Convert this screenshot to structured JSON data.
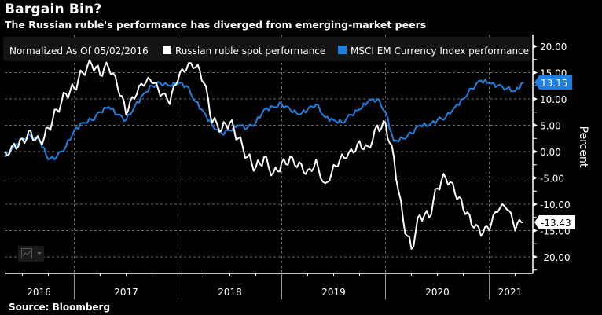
{
  "header": {
    "title": "Bargain Bin?",
    "subtitle": "The Russian ruble's performance has diverged from emerging-market peers"
  },
  "footer": {
    "source": "Source:  Bloomberg"
  },
  "widget": {
    "icon": "line-chart-icon",
    "dropdown_icon": "caret-down-icon"
  },
  "chart_data": {
    "type": "line",
    "title": "Bargain Bin?",
    "subtitle": "The Russian ruble's performance has diverged from emerging-market peers",
    "legend_note": "Normalized As Of 05/02/2016",
    "legend_position": "top",
    "xlabel": "",
    "ylabel": "Percent",
    "ylim": [
      -21.5,
      21.5
    ],
    "y_ticks": [
      20,
      15,
      10,
      5,
      0,
      -5,
      -10,
      -15,
      -20
    ],
    "y_tick_labels": [
      "20.00",
      "15.00",
      "10.00",
      "5.00",
      "0.00",
      "-5.00",
      "-10.00",
      "-15.00",
      "-20.00"
    ],
    "x_range": [
      2016.33,
      2021.42
    ],
    "x_ticks": [
      2017,
      2018,
      2019,
      2020,
      2021
    ],
    "x_labels": [
      {
        "label": "2016",
        "center": 2016.66
      },
      {
        "label": "2017",
        "center": 2017.5
      },
      {
        "label": "2018",
        "center": 2018.5
      },
      {
        "label": "2019",
        "center": 2019.5
      },
      {
        "label": "2020",
        "center": 2020.5
      },
      {
        "label": "2021",
        "center": 2021.2
      }
    ],
    "grid": true,
    "x": [
      2016.33,
      2016.42,
      2016.5,
      2016.58,
      2016.67,
      2016.75,
      2016.83,
      2016.92,
      2017.0,
      2017.08,
      2017.17,
      2017.25,
      2017.33,
      2017.42,
      2017.5,
      2017.58,
      2017.67,
      2017.75,
      2017.83,
      2017.92,
      2018.0,
      2018.08,
      2018.17,
      2018.25,
      2018.33,
      2018.42,
      2018.5,
      2018.58,
      2018.67,
      2018.75,
      2018.83,
      2018.92,
      2019.0,
      2019.08,
      2019.17,
      2019.25,
      2019.33,
      2019.42,
      2019.5,
      2019.58,
      2019.67,
      2019.75,
      2019.83,
      2019.92,
      2020.0,
      2020.08,
      2020.17,
      2020.25,
      2020.33,
      2020.42,
      2020.5,
      2020.58,
      2020.67,
      2020.75,
      2020.83,
      2020.92,
      2021.0,
      2021.08,
      2021.17,
      2021.25,
      2021.33
    ],
    "series": [
      {
        "name": "Russian ruble spot performance",
        "color": "#ffffff",
        "last_value": "-13.43",
        "values": [
          0.0,
          1.5,
          2.5,
          4.0,
          2.0,
          4.5,
          8.0,
          11.0,
          12.0,
          15.0,
          16.5,
          14.5,
          16.0,
          12.0,
          7.0,
          10.0,
          12.5,
          13.0,
          10.5,
          9.0,
          13.5,
          15.5,
          16.0,
          13.0,
          5.5,
          4.0,
          5.5,
          2.5,
          -1.0,
          -3.0,
          -1.0,
          -4.0,
          -2.0,
          -1.0,
          -2.0,
          -3.5,
          -1.5,
          -6.0,
          -2.5,
          -0.5,
          0.5,
          2.0,
          1.0,
          5.0,
          5.5,
          -1.0,
          -13.0,
          -18.5,
          -12.0,
          -12.5,
          -7.0,
          -5.0,
          -8.0,
          -11.0,
          -14.0,
          -16.0,
          -15.0,
          -11.5,
          -11.0,
          -15.0,
          -13.43
        ]
      },
      {
        "name": "MSCI EM Currency Index performance",
        "color": "#1f7fe0",
        "last_value": "13.15",
        "values": [
          -1.0,
          1.0,
          2.5,
          3.0,
          2.0,
          -1.5,
          -1.0,
          1.0,
          4.0,
          5.5,
          6.0,
          7.5,
          8.5,
          7.0,
          6.0,
          8.5,
          11.0,
          12.5,
          13.0,
          12.5,
          13.0,
          12.5,
          9.5,
          7.5,
          5.0,
          3.5,
          4.0,
          5.0,
          4.5,
          5.5,
          8.0,
          8.5,
          9.0,
          8.0,
          7.0,
          8.0,
          9.0,
          6.5,
          6.0,
          5.5,
          7.0,
          8.0,
          9.5,
          10.0,
          7.5,
          2.0,
          2.5,
          3.5,
          5.0,
          5.0,
          6.0,
          6.5,
          8.5,
          10.0,
          12.0,
          13.5,
          13.0,
          12.5,
          12.0,
          11.5,
          13.15
        ]
      }
    ]
  }
}
